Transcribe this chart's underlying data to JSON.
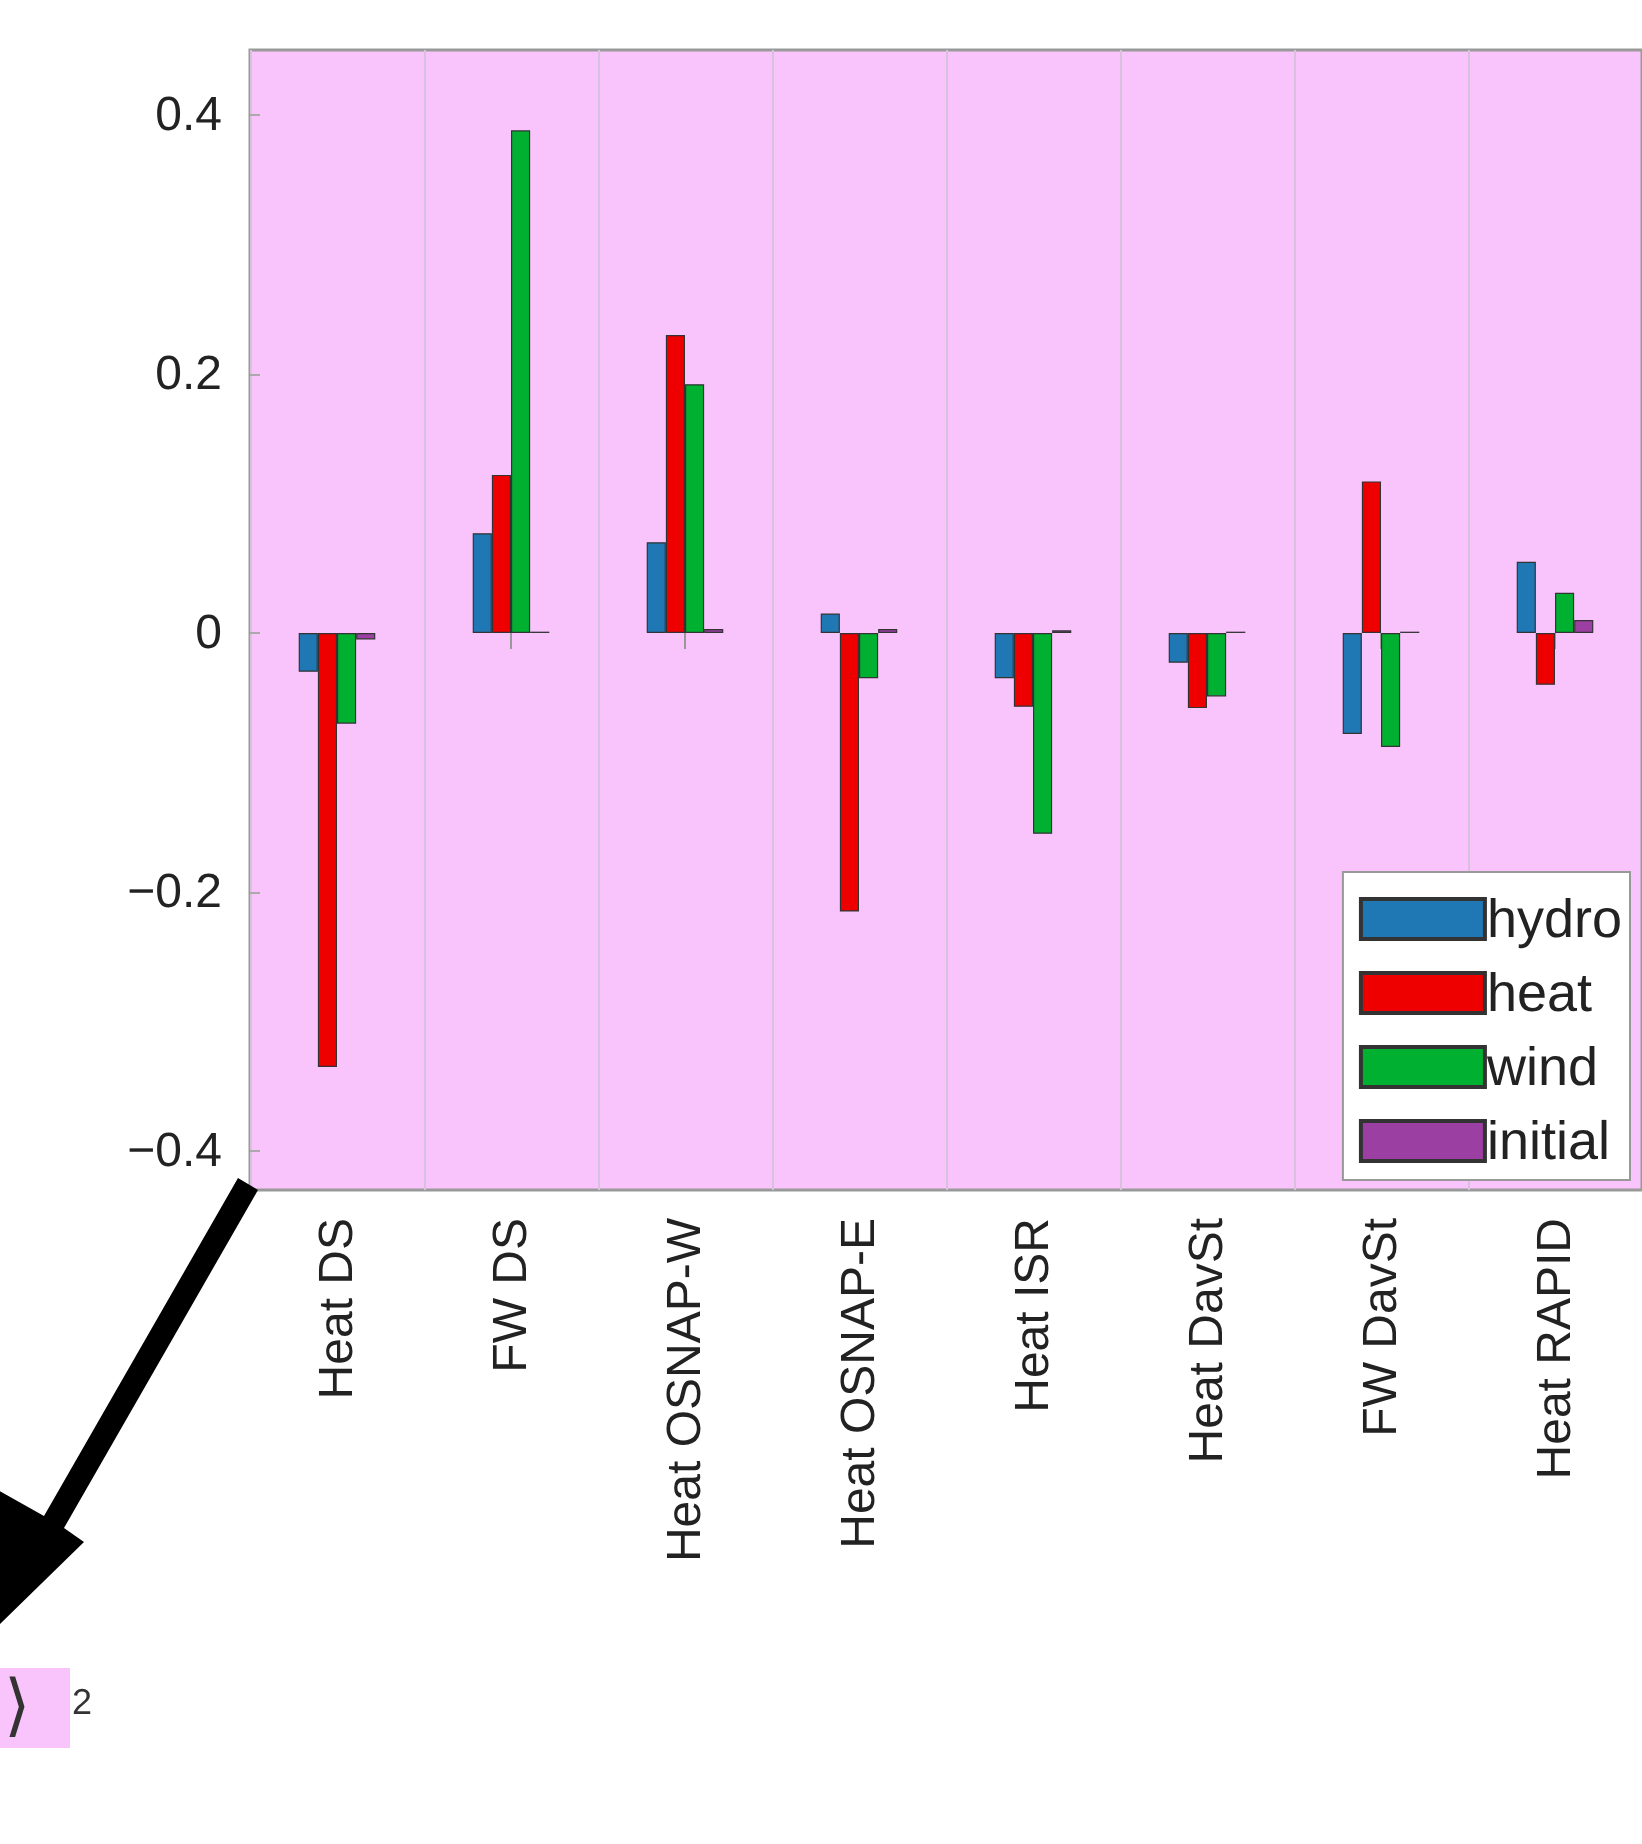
{
  "chart_data": {
    "type": "bar",
    "categories": [
      "Heat DS",
      "FW DS",
      "Heat OSNAP-W",
      "Heat OSNAP-E",
      "Heat ISR",
      "Heat DavSt",
      "FW DavSt",
      "Heat RAPID"
    ],
    "series": [
      {
        "name": "hydro",
        "color": "#1f77b4",
        "values": [
          -0.03,
          0.077,
          0.07,
          0.015,
          -0.035,
          -0.023,
          -0.078,
          0.055
        ]
      },
      {
        "name": "heat",
        "color": "#ee0000",
        "values": [
          -0.335,
          0.122,
          0.23,
          -0.215,
          -0.057,
          -0.058,
          0.117,
          -0.04
        ]
      },
      {
        "name": "wind",
        "color": "#00b030",
        "values": [
          -0.07,
          0.388,
          0.192,
          -0.035,
          -0.155,
          -0.049,
          -0.088,
          0.031
        ]
      },
      {
        "name": "initial",
        "color": "#9b3fa3",
        "values": [
          -0.005,
          0.001,
          0.003,
          0.003,
          0.002,
          0.001,
          0.001,
          0.01
        ]
      }
    ],
    "ylim": [
      -0.43,
      0.45
    ],
    "yticks": [
      {
        "value": -0.4,
        "label": "−0.4"
      },
      {
        "value": -0.2,
        "label": "−0.2"
      },
      0,
      0.2,
      0.4
    ],
    "grid": "x",
    "legend": "bottom right",
    "annotations": [
      "⟩$^{2}$"
    ]
  }
}
